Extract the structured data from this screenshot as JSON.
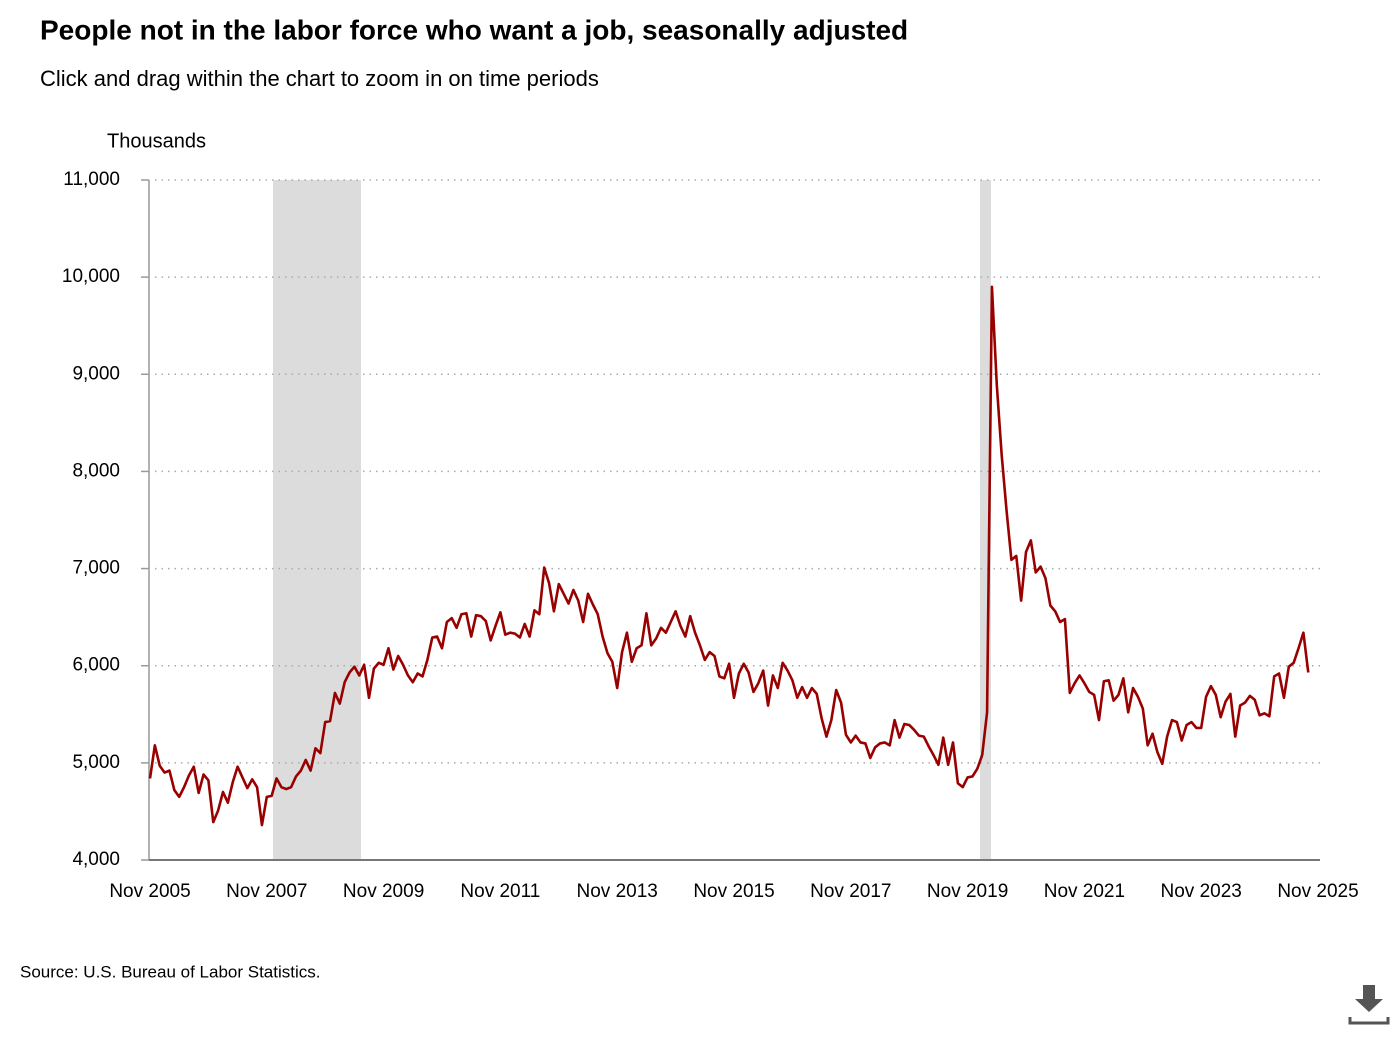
{
  "chart_data": {
    "type": "line",
    "title": "People not in the labor force who want a job, seasonally adjusted",
    "subtitle": "Click and drag within the chart to zoom in on time periods",
    "y_label": "Thousands",
    "source": "Source: U.S. Bureau of Labor Statistics.",
    "categories": [
      "Nov 2005",
      null,
      null,
      null,
      null,
      null,
      null,
      null,
      null,
      null,
      null,
      null,
      null,
      null,
      null,
      null,
      null,
      null,
      null,
      null,
      null,
      null,
      null,
      null,
      "Nov 2007",
      null,
      null,
      null,
      null,
      null,
      null,
      null,
      null,
      null,
      null,
      null,
      null,
      null,
      null,
      null,
      null,
      null,
      null,
      null,
      null,
      null,
      null,
      null,
      "Nov 2009",
      null,
      null,
      null,
      null,
      null,
      null,
      null,
      null,
      null,
      null,
      null,
      null,
      null,
      null,
      null,
      null,
      null,
      null,
      null,
      null,
      null,
      null,
      null,
      "Nov 2011",
      null,
      null,
      null,
      null,
      null,
      null,
      null,
      null,
      null,
      null,
      null,
      null,
      null,
      null,
      null,
      null,
      null,
      null,
      null,
      null,
      null,
      null,
      null,
      "Nov 2013",
      null,
      null,
      null,
      null,
      null,
      null,
      null,
      null,
      null,
      null,
      null,
      null,
      null,
      null,
      null,
      null,
      null,
      null,
      null,
      null,
      null,
      null,
      null,
      "Nov 2015",
      null,
      null,
      null,
      null,
      null,
      null,
      null,
      null,
      null,
      null,
      null,
      null,
      null,
      null,
      null,
      null,
      null,
      null,
      null,
      null,
      null,
      null,
      null,
      "Nov 2017",
      null,
      null,
      null,
      null,
      null,
      null,
      null,
      null,
      null,
      null,
      null,
      null,
      null,
      null,
      null,
      null,
      null,
      null,
      null,
      null,
      null,
      null,
      null,
      "Nov 2019",
      null,
      null,
      null,
      null,
      null,
      null,
      null,
      null,
      null,
      null,
      null,
      null,
      null,
      null,
      null,
      null,
      null,
      null,
      null,
      null,
      null,
      null,
      null,
      "Nov 2021",
      null,
      null,
      null,
      null,
      null,
      null,
      null,
      null,
      null,
      null,
      null,
      null,
      null,
      null,
      null,
      null,
      null,
      null,
      null,
      null,
      null,
      null,
      null,
      "Nov 2023",
      null,
      null,
      null,
      null,
      null,
      null,
      null,
      null,
      null,
      null,
      null,
      null,
      null,
      null,
      null,
      null,
      null,
      null,
      null,
      null,
      null,
      null,
      null,
      "Nov 2025"
    ],
    "values": [
      4840,
      5180,
      4970,
      4900,
      4920,
      4720,
      4650,
      4750,
      4870,
      4960,
      4690,
      4880,
      4820,
      4390,
      4510,
      4700,
      4590,
      4800,
      4960,
      4850,
      4740,
      4830,
      4750,
      4360,
      4650,
      4660,
      4840,
      4750,
      4730,
      4750,
      4860,
      4920,
      5030,
      4920,
      5150,
      5100,
      5420,
      5430,
      5720,
      5610,
      5830,
      5930,
      5990,
      5900,
      6010,
      5670,
      5970,
      6030,
      6010,
      6180,
      5960,
      6100,
      6010,
      5900,
      5830,
      5920,
      5890,
      6060,
      6290,
      6300,
      6180,
      6450,
      6490,
      6390,
      6530,
      6540,
      6300,
      6520,
      6510,
      6460,
      6260,
      6410,
      6550,
      6320,
      6340,
      6330,
      6290,
      6430,
      6300,
      6570,
      6530,
      7010,
      6850,
      6560,
      6840,
      6740,
      6640,
      6780,
      6670,
      6450,
      6740,
      6630,
      6530,
      6300,
      6130,
      6040,
      5770,
      6140,
      6340,
      6040,
      6180,
      6210,
      6540,
      6210,
      6280,
      6390,
      6340,
      6450,
      6560,
      6410,
      6300,
      6510,
      6340,
      6210,
      6060,
      6140,
      6100,
      5890,
      5870,
      6020,
      5670,
      5920,
      6020,
      5930,
      5730,
      5820,
      5950,
      5590,
      5900,
      5770,
      6030,
      5950,
      5850,
      5670,
      5780,
      5670,
      5770,
      5710,
      5460,
      5270,
      5440,
      5750,
      5620,
      5290,
      5210,
      5280,
      5210,
      5200,
      5050,
      5160,
      5200,
      5210,
      5180,
      5440,
      5260,
      5400,
      5390,
      5340,
      5280,
      5270,
      5170,
      5080,
      4980,
      5260,
      4980,
      5210,
      4790,
      4750,
      4850,
      4860,
      4940,
      5080,
      5520,
      9900,
      8890,
      8170,
      7600,
      7090,
      7130,
      6670,
      7170,
      7290,
      6960,
      7020,
      6900,
      6620,
      6560,
      6450,
      6480,
      5720,
      5820,
      5900,
      5820,
      5730,
      5700,
      5440,
      5840,
      5850,
      5640,
      5700,
      5870,
      5520,
      5770,
      5680,
      5560,
      5180,
      5300,
      5110,
      4990,
      5270,
      5440,
      5420,
      5230,
      5390,
      5420,
      5360,
      5360,
      5680,
      5790,
      5700,
      5470,
      5630,
      5710,
      5270,
      5590,
      5620,
      5690,
      5650,
      5490,
      5510,
      5480,
      5890,
      5920,
      5670,
      5990,
      6030,
      6180,
      6340,
      5930,
      null,
      null
    ],
    "color": "#990000",
    "ylim": [
      4000,
      11000
    ],
    "yticks": [
      {
        "value": 4000,
        "label": "4,000"
      },
      {
        "value": 5000,
        "label": "5,000"
      },
      {
        "value": 6000,
        "label": "6,000"
      },
      {
        "value": 7000,
        "label": "7,000"
      },
      {
        "value": 8000,
        "label": "8,000"
      },
      {
        "value": 9000,
        "label": "9,000"
      },
      {
        "value": 10000,
        "label": "10,000"
      },
      {
        "value": 11000,
        "label": "11,000"
      }
    ],
    "grid": true
  }
}
